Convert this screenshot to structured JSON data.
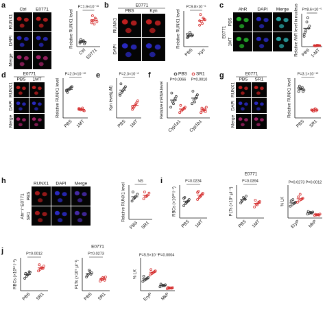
{
  "panels": [
    {
      "letter": "a",
      "images": {
        "columns": [
          {
            "label": "Ctrl",
            "label_color": "#111"
          },
          {
            "label": "E0771",
            "label_color": "#111"
          }
        ],
        "rows": [
          {
            "label": "RUNX1",
            "label_color": "#d41f1f",
            "cell_color": "#e02525"
          },
          {
            "label": "DAPI",
            "label_color": "#2a2ad0",
            "cell_color": "#3030e0"
          },
          {
            "label": "Merge",
            "label_color": "#111",
            "cell_color": "#c0287a"
          }
        ]
      },
      "plots": [
        {
          "ylabel": "Relative RUNX1 level",
          "categories": [
            "Ctrl",
            "E0771"
          ],
          "colors": [
            "#333",
            "#d42a2a"
          ],
          "values": [
            [
              0.15,
              0.2,
              0.25,
              0.18,
              0.3,
              0.22,
              0.12,
              0.2
            ],
            [
              1.0,
              1.1,
              1.2,
              1.05,
              1.3,
              0.95,
              1.15,
              1.1
            ]
          ],
          "ylim": [
            0,
            1.5
          ],
          "p_values": [
            "P=1.9×10⁻¹⁶"
          ]
        }
      ]
    },
    {
      "letter": "b",
      "header": "E0771",
      "images": {
        "columns": [
          {
            "label": "PBS",
            "label_color": "#111"
          },
          {
            "label": "Kyn",
            "label_color": "#111"
          }
        ],
        "rows": [
          {
            "label": "RUNX1",
            "label_color": "#d41f1f",
            "cell_color": "#e02525"
          },
          {
            "label": "DAPI",
            "label_color": "#2a2ad0",
            "cell_color": "#3030e0"
          }
        ]
      },
      "plots": [
        {
          "ylabel": "Relative RUNX1 level",
          "categories": [
            "PBS",
            "Kyn"
          ],
          "colors": [
            "#333",
            "#d42a2a"
          ],
          "values": [
            [
              0.5,
              0.6,
              0.7,
              0.65,
              0.55,
              0.8,
              0.6,
              0.7
            ],
            [
              1.2,
              1.4,
              1.6,
              1.5,
              1.8,
              1.3,
              1.55,
              1.45
            ]
          ],
          "ylim": [
            0,
            2
          ],
          "p_values": [
            "P=9.8×10⁻⁶"
          ]
        }
      ]
    },
    {
      "letter": "c",
      "side_label": "E0771",
      "images": {
        "columns": [
          {
            "label": "AhR",
            "label_color": "#1faa2a",
            "cell_color": "#2ad030"
          },
          {
            "label": "DAPI",
            "label_color": "#2a2ad0",
            "cell_color": "#3030e0"
          },
          {
            "label": "Merge",
            "label_color": "#111",
            "cell_color": "#30c0c0"
          }
        ],
        "rows": [
          {
            "label": "PBS",
            "label_color": "#111"
          },
          {
            "label": "1MT",
            "label_color": "#111"
          }
        ]
      },
      "plots": [
        {
          "ylabel": "Relative AhR level in nucleus",
          "categories": [
            "PBS",
            "1-MT"
          ],
          "colors": [
            "#333",
            "#d42a2a"
          ],
          "values": [
            [
              0.5,
              0.8,
              1.4,
              1.0,
              0.7,
              1.2,
              0.9,
              0.6
            ],
            [
              0.05,
              0.04,
              0.06,
              0.05,
              0.03,
              0.07,
              0.05,
              0.04
            ]
          ],
          "ylim": [
            0,
            1.6
          ],
          "p_values": [
            "P=8.6×10⁻⁵"
          ]
        }
      ]
    },
    {
      "letter": "d",
      "header": "E0771",
      "images": {
        "columns": [
          {
            "label": "PBS",
            "label_color": "#111"
          },
          {
            "label": "1MT",
            "label_color": "#111"
          }
        ],
        "rows": [
          {
            "label": "RUNX1",
            "label_color": "#d41f1f",
            "cell_color": "#e02525"
          },
          {
            "label": "DAPI",
            "label_color": "#2a2ad0",
            "cell_color": "#3030e0"
          },
          {
            "label": "Merge",
            "label_color": "#111",
            "cell_color": "#c0287a"
          }
        ]
      },
      "plots": [
        {
          "ylabel": "Relative RUNX1 level",
          "categories": [
            "PBS",
            "1MT"
          ],
          "colors": [
            "#333",
            "#d42a2a"
          ],
          "values": [
            [
              0.95,
              1.0,
              1.05,
              1.1,
              0.9,
              1.0,
              1.08,
              0.98
            ],
            [
              0.3,
              0.28,
              0.35,
              0.25,
              0.32,
              0.3,
              0.27,
              0.33
            ]
          ],
          "ylim": [
            0,
            1.4
          ],
          "p_values": [
            "P=2.0×10⁻¹⁰"
          ]
        }
      ]
    },
    {
      "letter": "e",
      "plots": [
        {
          "ylabel": "Kyn level(μM)",
          "categories": [
            "PBS",
            "1MT"
          ],
          "colors": [
            "#333",
            "#d42a2a"
          ],
          "values": [
            [
              8,
              9,
              10,
              11,
              12,
              9.5,
              10.5,
              8.5
            ],
            [
              3,
              4,
              5,
              6,
              3.5,
              4.5,
              5.5,
              4
            ]
          ],
          "ylim": [
            0,
            14
          ],
          "p_values": [
            "P=2.3×10⁻⁸"
          ]
        }
      ]
    },
    {
      "letter": "f",
      "plots": [
        {
          "ylabel": "Relative mRNA level",
          "categories": [
            "Cyp1a1",
            "Cyp1b1"
          ],
          "series": [
            {
              "name": "PBS",
              "color": "#333",
              "values": [
                [
                  0.6,
                  0.9,
                  1.0,
                  1.2,
                  1.4,
                  0.8,
                  1.1
                ],
                [
                  0.8,
                  1.0,
                  1.1,
                  1.3,
                  1.5,
                  0.9,
                  1.2
                ]
              ]
            },
            {
              "name": "SR1",
              "color": "#d42a2a",
              "values": [
                [
                  0.3,
                  0.4,
                  0.5,
                  0.6,
                  0.7,
                  0.45,
                  0.55
                ],
                [
                  0.3,
                  0.4,
                  0.5,
                  0.6,
                  0.55,
                  0.45,
                  0.35
                ]
              ]
            }
          ],
          "ylim": [
            0,
            2
          ],
          "p_values": [
            "P=0.0066",
            "P=0.0010"
          ]
        }
      ]
    },
    {
      "letter": "g",
      "header": "E0771",
      "images": {
        "columns": [
          {
            "label": "PBS",
            "label_color": "#111"
          },
          {
            "label": "SR1",
            "label_color": "#111"
          }
        ],
        "rows": [
          {
            "label": "RUNX1",
            "label_color": "#d41f1f",
            "cell_color": "#e02525"
          },
          {
            "label": "DAPI",
            "label_color": "#2a2ad0",
            "cell_color": "#3030e0"
          },
          {
            "label": "Merge",
            "label_color": "#111",
            "cell_color": "#c0287a"
          }
        ]
      },
      "plots": [
        {
          "ylabel": "Relative RUNX1 level",
          "categories": [
            "PBS",
            "SR1"
          ],
          "colors": [
            "#333",
            "#d42a2a"
          ],
          "values": [
            [
              1.0,
              1.1,
              1.15,
              1.05,
              1.2,
              1.1,
              1.0,
              1.12
            ],
            [
              0.3,
              0.25,
              0.35,
              0.3,
              0.28,
              0.32,
              0.27,
              0.3
            ]
          ],
          "ylim": [
            0,
            1.5
          ],
          "p_values": [
            "P=3.1×10⁻¹⁰"
          ]
        }
      ]
    },
    {
      "letter": "h",
      "side_label": "Ahr⁻/⁻E0771",
      "images": {
        "columns": [
          {
            "label": "RUNX1",
            "label_color": "#d41f1f",
            "cell_color": "#c02020"
          },
          {
            "label": "DAPI",
            "label_color": "#2a2ad0",
            "cell_color": "#3030e0"
          },
          {
            "label": "Merge",
            "label_color": "#111",
            "cell_color": "#5030c0"
          }
        ],
        "rows": [
          {
            "label": "PBS",
            "label_color": "#111"
          },
          {
            "label": "SR1",
            "label_color": "#111"
          }
        ]
      },
      "plots": [
        {
          "ylabel": "Relative RUNX1 level",
          "categories": [
            "PBS",
            "SR1"
          ],
          "colors": [
            "#333",
            "#d42a2a"
          ],
          "values": [
            [
              0.8,
              0.9,
              1.0,
              1.1,
              1.2,
              0.95
            ],
            [
              0.9,
              1.0,
              1.05,
              1.15,
              1.2,
              1.0
            ]
          ],
          "ylim": [
            0,
            1.5
          ],
          "p_values": [
            "NS"
          ]
        }
      ]
    },
    {
      "letter": "i",
      "header": "E0771",
      "plots": [
        {
          "ylabel": "RBCs (×10¹² l⁻¹)",
          "categories": [
            "PBS",
            "1MT"
          ],
          "colors": [
            "#333",
            "#d42a2a"
          ],
          "values": [
            [
              7,
              7.5,
              8,
              8.5,
              9,
              7.8,
              8.2,
              8.8
            ],
            [
              8.5,
              9,
              9.5,
              10,
              10.5,
              9.2,
              9.8,
              10.2
            ]
          ],
          "ylim": [
            4,
            12
          ],
          "p_values": [
            "P=0.0234"
          ]
        },
        {
          "ylabel": "PLTs (×10⁹ μl⁻¹)",
          "categories": [
            "PBS",
            "1MT"
          ],
          "colors": [
            "#333",
            "#d42a2a"
          ],
          "values": [
            [
              0.95,
              1.05,
              1.1,
              1.2,
              1.0,
              1.15,
              1.08
            ],
            [
              0.8,
              0.9,
              0.95,
              1.0,
              1.05,
              0.88,
              0.98
            ]
          ],
          "ylim": [
            0.4,
            1.6
          ],
          "p_values": [
            "P=0.0394"
          ]
        },
        {
          "ylabel": "% LK",
          "categories": [
            "EryP",
            "MkP"
          ],
          "series": [
            {
              "color": "#333",
              "values": [
                [
                  9,
                  10,
                  11,
                  12,
                  13,
                  14,
                  11.5
                ],
                [
                  3,
                  3.5,
                  4,
                  4.5,
                  5,
                  4.2,
                  3.8
                ]
              ]
            },
            {
              "color": "#d42a2a",
              "values": [
                [
                  12,
                  13,
                  14,
                  15,
                  16,
                  18,
                  14.5
                ],
                [
                  2,
                  2.3,
                  2.6,
                  3,
                  2.8,
                  2.4,
                  2.2
                ]
              ]
            }
          ],
          "ylim": [
            0,
            25
          ],
          "p_values": [
            "P=0.0273",
            "P=0.0012"
          ]
        }
      ]
    },
    {
      "letter": "j",
      "header": "E0771",
      "plots": [
        {
          "ylabel": "RBCs (×10¹² l⁻¹)",
          "categories": [
            "PBS",
            "SR1"
          ],
          "colors": [
            "#333",
            "#d42a2a"
          ],
          "values": [
            [
              7,
              7.5,
              8,
              8.5,
              8.2,
              7.8,
              8.6
            ],
            [
              8.8,
              9.2,
              9.5,
              10,
              10.3,
              9.6,
              9.4
            ]
          ],
          "ylim": [
            4,
            12
          ],
          "p_values": [
            "P=0.0012"
          ]
        },
        {
          "ylabel": "PLTs (×10⁹ μl⁻¹)",
          "categories": [
            "PBS",
            "SR1"
          ],
          "colors": [
            "#333",
            "#d42a2a"
          ],
          "values": [
            [
              0.9,
              1.0,
              1.1,
              1.05,
              0.95,
              1.15,
              1.0
            ],
            [
              0.75,
              0.8,
              0.85,
              0.9,
              0.82,
              0.88,
              0.78
            ]
          ],
          "ylim": [
            0.4,
            1.6
          ],
          "p_values": [
            "P=0.0273"
          ]
        },
        {
          "ylabel": "% LK",
          "categories": [
            "EryP",
            "MkP"
          ],
          "series": [
            {
              "color": "#333",
              "values": [
                [
                  7,
                  8,
                  9,
                  10,
                  11,
                  8.5,
                  9.5
                ],
                [
                  3,
                  3.5,
                  4,
                  4.5,
                  5,
                  4.2,
                  3.8
                ]
              ]
            },
            {
              "color": "#d42a2a",
              "values": [
                [
                  12,
                  13,
                  14,
                  15,
                  16,
                  13.5,
                  14.5
                ],
                [
                  1.5,
                  1.8,
                  2,
                  2.3,
                  2.5,
                  2.1,
                  1.9
                ]
              ]
            }
          ],
          "ylim": [
            0,
            25
          ],
          "p_values": [
            "P=5.5×10⁻⁶",
            "P=0.0004"
          ]
        }
      ]
    }
  ]
}
